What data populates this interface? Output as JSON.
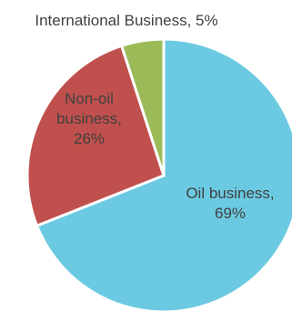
{
  "chart_data": {
    "type": "pie",
    "title": "",
    "slices": [
      {
        "label_lines": [
          "Oil business,",
          "69%"
        ],
        "category": "Oil business",
        "value": 69,
        "color": "#6BCAE2"
      },
      {
        "label_lines": [
          "Non-oil",
          "business,",
          "26%"
        ],
        "category": "Non-oil business",
        "value": 26,
        "color": "#C0504D"
      },
      {
        "label_lines": [
          "International Business, 5%"
        ],
        "category": "International Business",
        "value": 5,
        "color": "#9BBB59"
      }
    ],
    "legend": "none",
    "start_angle_deg": 0,
    "direction": "clockwise"
  }
}
